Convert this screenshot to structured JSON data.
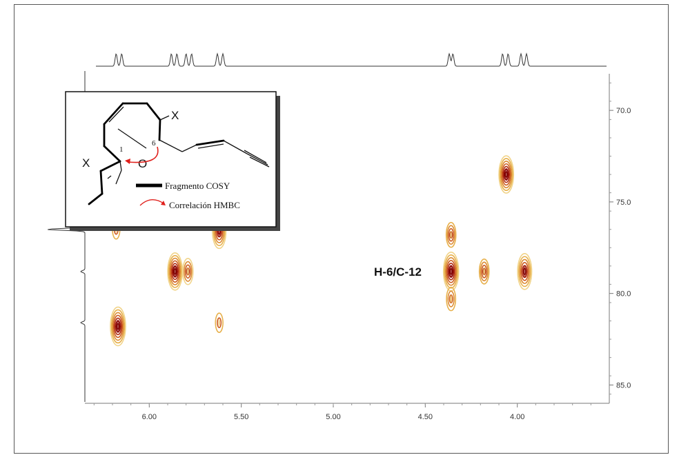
{
  "chart_data": {
    "type": "heatmap",
    "title": "",
    "xlabel": "",
    "ylabel": "",
    "xlim": [
      6.35,
      3.5
    ],
    "ylim": [
      68.0,
      86.0
    ],
    "x_ticks": [
      "6.00",
      "5.50",
      "5.00",
      "4.50",
      "4.00"
    ],
    "x_tick_values": [
      6.0,
      5.5,
      5.0,
      4.5,
      4.0
    ],
    "y_ticks": [
      "70.0",
      "75.0",
      "80.0",
      "85.0"
    ],
    "y_tick_values": [
      70.0,
      75.0,
      80.0,
      85.0
    ],
    "cross_peaks": [
      {
        "h": 6.17,
        "c": 81.8,
        "intensity": 1.0
      },
      {
        "h": 6.18,
        "c": 76.5,
        "intensity": 0.3
      },
      {
        "h": 5.86,
        "c": 78.8,
        "intensity": 0.95
      },
      {
        "h": 5.79,
        "c": 78.8,
        "intensity": 0.55
      },
      {
        "h": 5.62,
        "c": 76.6,
        "intensity": 0.85
      },
      {
        "h": 5.62,
        "c": 81.6,
        "intensity": 0.3
      },
      {
        "h": 4.36,
        "c": 78.8,
        "intensity": 1.0
      },
      {
        "h": 4.36,
        "c": 76.8,
        "intensity": 0.5
      },
      {
        "h": 4.36,
        "c": 80.3,
        "intensity": 0.45
      },
      {
        "h": 4.18,
        "c": 78.8,
        "intensity": 0.5
      },
      {
        "h": 4.06,
        "c": 73.5,
        "intensity": 0.95
      },
      {
        "h": 3.96,
        "c": 78.8,
        "intensity": 0.9
      }
    ],
    "projection_1h_peaks": [
      6.18,
      6.15,
      5.88,
      5.85,
      5.8,
      5.77,
      5.63,
      5.6,
      4.37,
      4.35,
      4.08,
      4.05,
      3.98,
      3.95
    ],
    "projection_13c_peaks": [
      76.5,
      78.8,
      81.6
    ],
    "annotation": "H-6/C-12",
    "annotation_position": {
      "h": 4.52,
      "c": 78.8
    }
  },
  "inset": {
    "atom_X_top": "X",
    "atom_X_left": "X",
    "atom_O": "O",
    "locant_1": "1",
    "locant_6": "6",
    "legend_cosy": "Fragmento COSY",
    "legend_hmbc": "Correlación HMBC"
  },
  "colors": {
    "contour_dark": "#8b0000",
    "contour_mid": "#cc4a1a",
    "contour_light": "#e7b04a",
    "hmbc_arrow": "#e0201c",
    "trace": "#333333"
  }
}
